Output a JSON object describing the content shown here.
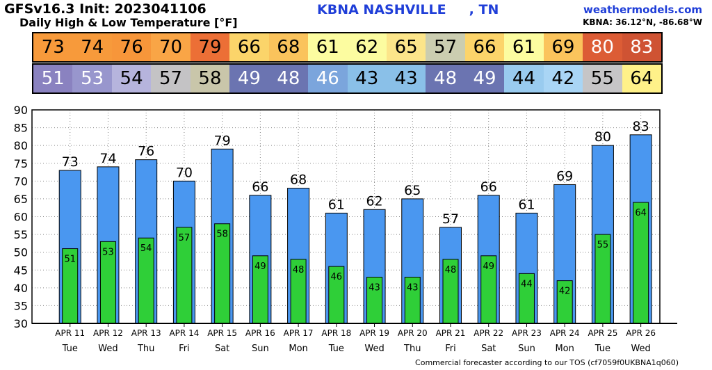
{
  "header": {
    "model_init": "GFSv16.3 Init: 2023041106",
    "subtitle": "Daily High & Low Temperature [°F]",
    "station": "KBNA NASHVILLE     , TN",
    "site": "weathermodels.com",
    "coords": "KBNA: 36.12°N, -86.68°W"
  },
  "footer": "Commercial forecaster according to our TOS (cf7059f0UKBNA1q060)",
  "strips": {
    "high_colors": [
      "#f79a3b",
      "#f79a3b",
      "#f7963a",
      "#f9a546",
      "#ec6f36",
      "#fbd46a",
      "#fac35c",
      "#fcfca0",
      "#fcfca0",
      "#fce58a",
      "#cbcdb0",
      "#fcd46a",
      "#fcfca0",
      "#fbc45c",
      "#dc5c35",
      "#cf5333"
    ],
    "low_colors": [
      "#8a82c0",
      "#9896cd",
      "#b6b4dd",
      "#c4c3c5",
      "#c9c6aa",
      "#6b74b1",
      "#6b74b1",
      "#7ba5dc",
      "#8ac0e8",
      "#8ac0e8",
      "#6b74b1",
      "#6b74b1",
      "#99cbef",
      "#a9d5f5",
      "#c6c5c7",
      "#fff189"
    ],
    "high_text_colors": [
      "#000",
      "#000",
      "#000",
      "#000",
      "#000",
      "#000",
      "#000",
      "#000",
      "#000",
      "#000",
      "#000",
      "#000",
      "#000",
      "#000",
      "#fff",
      "#fff"
    ],
    "low_text_colors": [
      "#fff",
      "#fff",
      "#000",
      "#000",
      "#000",
      "#fff",
      "#fff",
      "#fff",
      "#000",
      "#000",
      "#fff",
      "#fff",
      "#000",
      "#000",
      "#000",
      "#000"
    ]
  },
  "chart_data": {
    "type": "bar",
    "categories": [
      "APR 11",
      "APR 12",
      "APR 13",
      "APR 14",
      "APR 15",
      "APR 16",
      "APR 17",
      "APR 18",
      "APR 19",
      "APR 20",
      "APR 21",
      "APR 22",
      "APR 23",
      "APR 24",
      "APR 25",
      "APR 26"
    ],
    "weekdays": [
      "Tue",
      "Wed",
      "Thu",
      "Fri",
      "Sat",
      "Sun",
      "Mon",
      "Tue",
      "Wed",
      "Thu",
      "Fri",
      "Sat",
      "Sun",
      "Mon",
      "Tue",
      "Wed"
    ],
    "high_labels": [
      "73",
      "74",
      "76",
      "70",
      "79",
      "66",
      "68",
      "61",
      "62",
      "65",
      "57",
      "66",
      "61",
      "69",
      "80",
      "83"
    ],
    "low_labels": [
      "51",
      "53",
      "54",
      "57",
      "58",
      "49",
      "48",
      "46",
      "43",
      "43",
      "48",
      "49",
      "44",
      "42",
      "55",
      "64"
    ],
    "series": [
      {
        "values": [
          73,
          74,
          76,
          70,
          79,
          66,
          68,
          61,
          62,
          65,
          57,
          66,
          61,
          69,
          80,
          83
        ],
        "color": "#4a97f0"
      },
      {
        "values": [
          51,
          53,
          54,
          57,
          58,
          49,
          48,
          46,
          43,
          43,
          48,
          49,
          44,
          42,
          55,
          64
        ],
        "color": "#2fcf38"
      }
    ],
    "ylim": [
      30,
      90
    ],
    "yticks": [
      "30",
      "35",
      "40",
      "45",
      "50",
      "55",
      "60",
      "65",
      "70",
      "75",
      "80",
      "85",
      "90"
    ],
    "grid": true
  }
}
